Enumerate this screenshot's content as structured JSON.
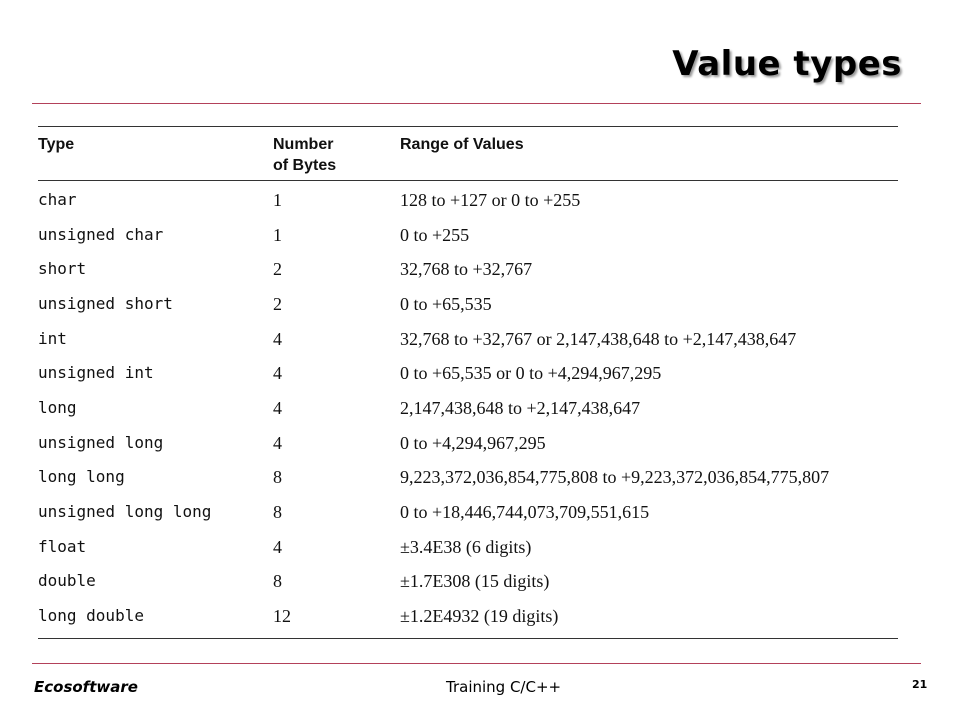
{
  "slide": {
    "title": "Value types"
  },
  "table": {
    "headers": {
      "type": "Type",
      "bytes_line1": "Number",
      "bytes_line2": "of Bytes",
      "range": "Range of Values"
    },
    "rows": [
      {
        "type": "char",
        "bytes": "1",
        "range": "128 to +127 or 0 to +255"
      },
      {
        "type": "unsigned char",
        "bytes": "1",
        "range": "0 to +255"
      },
      {
        "type": "short",
        "bytes": "2",
        "range": "32,768 to +32,767"
      },
      {
        "type": "unsigned short",
        "bytes": "2",
        "range": "0 to +65,535"
      },
      {
        "type": "int",
        "bytes": "4",
        "range": "32,768 to +32,767 or 2,147,438,648 to +2,147,438,647"
      },
      {
        "type": "unsigned int",
        "bytes": "4",
        "range": "0 to +65,535 or 0 to +4,294,967,295"
      },
      {
        "type": "long",
        "bytes": "4",
        "range": "2,147,438,648 to +2,147,438,647"
      },
      {
        "type": "unsigned long",
        "bytes": "4",
        "range": "0 to +4,294,967,295"
      },
      {
        "type": "long long",
        "bytes": "8",
        "range": "9,223,372,036,854,775,808 to +9,223,372,036,854,775,807"
      },
      {
        "type": "unsigned long long",
        "bytes": "8",
        "range": "0 to +18,446,744,073,709,551,615"
      },
      {
        "type": "float",
        "bytes": "4",
        "range": "±3.4E38 (6 digits)"
      },
      {
        "type": "double",
        "bytes": "8",
        "range": "±1.7E308 (15 digits)"
      },
      {
        "type": "long double",
        "bytes": "12",
        "range": "±1.2E4932 (19 digits)"
      }
    ]
  },
  "footer": {
    "brand": "Ecosoftware",
    "course": "Training C/C++",
    "page_number": "21"
  },
  "colors": {
    "rule": "#b3415a",
    "table_line": "#333333"
  }
}
